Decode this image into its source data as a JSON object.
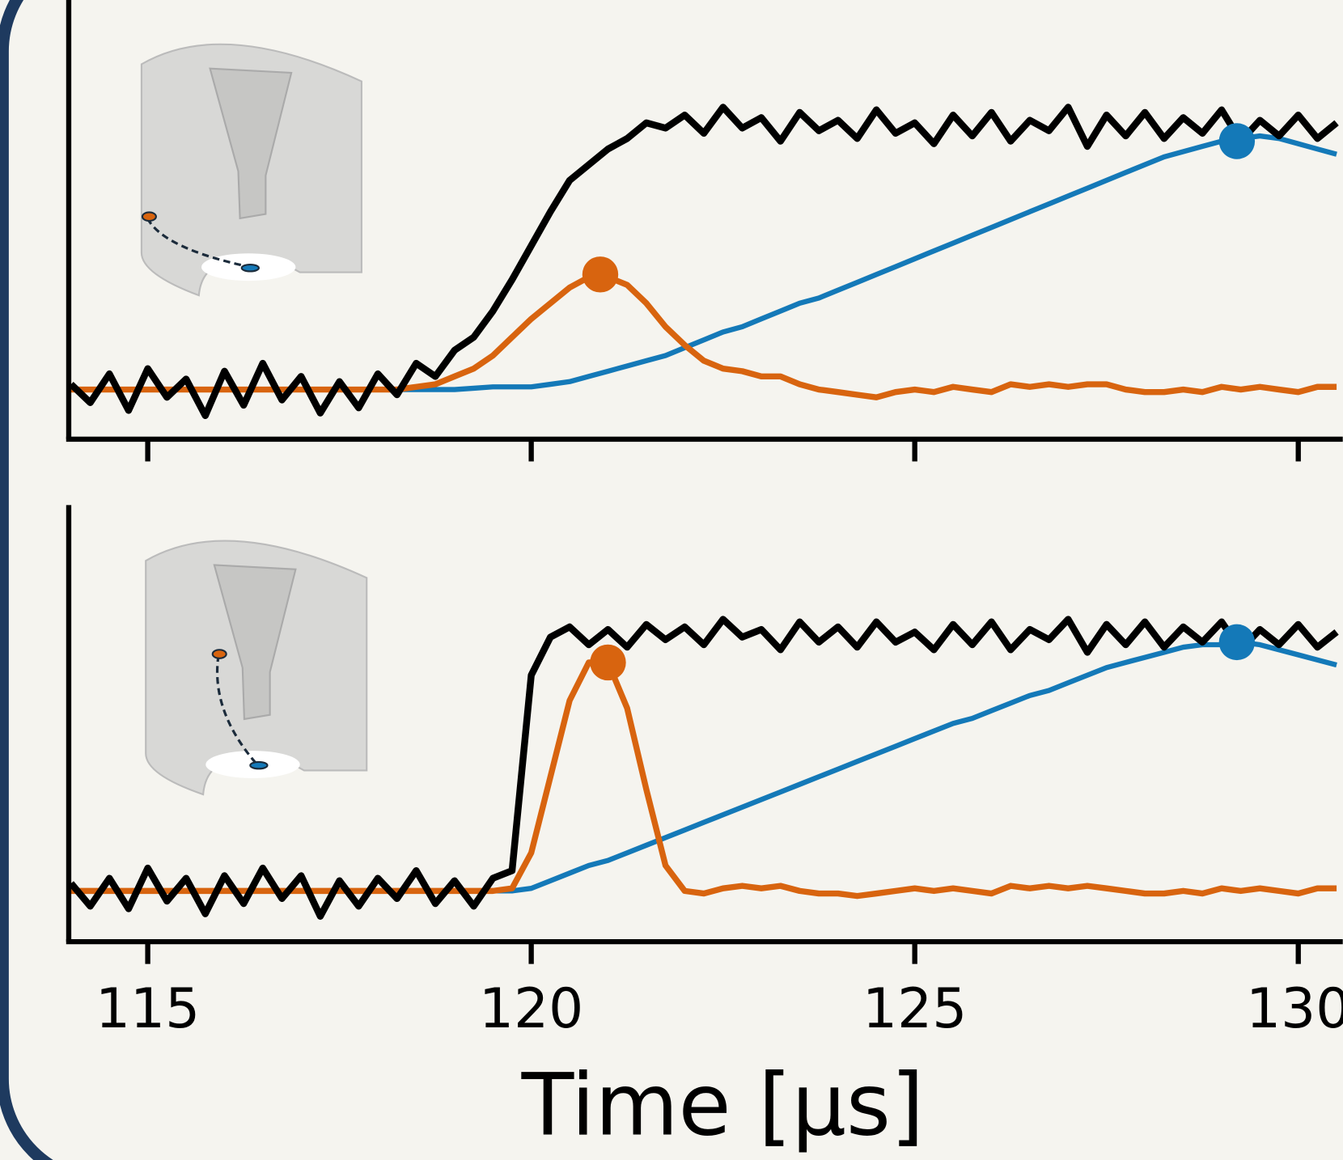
{
  "chart_data": [
    {
      "type": "line",
      "x": [
        114,
        114.25,
        114.5,
        114.75,
        115,
        115.25,
        115.5,
        115.75,
        116,
        116.25,
        116.5,
        116.75,
        117,
        117.25,
        117.5,
        117.75,
        118,
        118.25,
        118.5,
        118.75,
        119,
        119.25,
        119.5,
        119.75,
        120,
        120.25,
        120.5,
        120.75,
        121,
        121.25,
        121.5,
        121.75,
        122,
        122.25,
        122.5,
        122.75,
        123,
        123.25,
        123.5,
        123.75,
        124,
        124.25,
        124.5,
        124.75,
        125,
        125.25,
        125.5,
        125.75,
        126,
        126.25,
        126.5,
        126.75,
        127,
        127.25,
        127.5,
        127.75,
        128,
        128.25,
        128.5,
        128.75,
        129,
        129.25,
        129.5,
        129.75,
        130,
        130.25,
        130.5
      ],
      "series": [
        {
          "color": "#1479b8",
          "values": [
            0,
            0,
            0,
            0,
            0,
            0,
            0,
            0,
            0,
            0,
            0,
            0,
            0,
            0,
            0,
            0,
            0,
            0,
            0,
            0,
            0,
            0.005,
            0.01,
            0.01,
            0.01,
            0.02,
            0.03,
            0.05,
            0.07,
            0.09,
            0.11,
            0.13,
            0.16,
            0.19,
            0.22,
            0.24,
            0.27,
            0.3,
            0.33,
            0.35,
            0.38,
            0.41,
            0.44,
            0.47,
            0.5,
            0.53,
            0.56,
            0.59,
            0.62,
            0.65,
            0.68,
            0.71,
            0.74,
            0.77,
            0.8,
            0.83,
            0.86,
            0.89,
            0.91,
            0.93,
            0.95,
            0.96,
            0.97,
            0.96,
            0.94,
            0.92,
            0.9
          ]
        },
        {
          "color": "#d8640f",
          "values": [
            0,
            0,
            0,
            0,
            0,
            0,
            0,
            0,
            0,
            0,
            0,
            0,
            0,
            0,
            0,
            0,
            0,
            0,
            0.01,
            0.02,
            0.05,
            0.08,
            0.13,
            0.2,
            0.27,
            0.33,
            0.39,
            0.43,
            0.43,
            0.4,
            0.33,
            0.24,
            0.17,
            0.11,
            0.08,
            0.07,
            0.05,
            0.05,
            0.02,
            0,
            -0.01,
            -0.02,
            -0.03,
            -0.01,
            0,
            -0.01,
            0.01,
            0,
            -0.01,
            0.02,
            0.01,
            0.02,
            0.01,
            0.02,
            0.02,
            0,
            -0.01,
            -0.01,
            0,
            -0.01,
            0.01,
            0,
            0.01,
            0,
            -0.01,
            0.01,
            0.01
          ]
        },
        {
          "color": "#000000",
          "values": [
            0.02,
            -0.05,
            0.06,
            -0.08,
            0.08,
            -0.03,
            0.04,
            -0.1,
            0.07,
            -0.06,
            0.1,
            -0.04,
            0.05,
            -0.09,
            0.03,
            -0.07,
            0.06,
            -0.02,
            0.1,
            0.05,
            0.15,
            0.2,
            0.3,
            0.42,
            0.55,
            0.68,
            0.8,
            0.86,
            0.92,
            0.96,
            1.02,
            1.0,
            1.05,
            0.98,
            1.08,
            1.0,
            1.04,
            0.95,
            1.06,
            0.99,
            1.03,
            0.96,
            1.07,
            0.98,
            1.02,
            0.94,
            1.05,
            0.97,
            1.06,
            0.95,
            1.03,
            0.99,
            1.08,
            0.93,
            1.05,
            0.97,
            1.06,
            0.96,
            1.04,
            0.98,
            1.07,
            0.95,
            1.03,
            0.97,
            1.05,
            0.96,
            1.02
          ]
        }
      ],
      "points": [
        {
          "color": "#d8640f",
          "x": 120.9,
          "y": 0.44
        },
        {
          "color": "#1479b8",
          "x": 129.2,
          "y": 0.95
        }
      ],
      "xlim": [
        113.97,
        130.58
      ],
      "ylim": [
        -0.19,
        1.49
      ],
      "xticks": [
        115,
        120,
        125,
        130
      ]
    },
    {
      "type": "line",
      "x": [
        114,
        114.25,
        114.5,
        114.75,
        115,
        115.25,
        115.5,
        115.75,
        116,
        116.25,
        116.5,
        116.75,
        117,
        117.25,
        117.5,
        117.75,
        118,
        118.25,
        118.5,
        118.75,
        119,
        119.25,
        119.5,
        119.75,
        120,
        120.25,
        120.5,
        120.75,
        121,
        121.25,
        121.5,
        121.75,
        122,
        122.25,
        122.5,
        122.75,
        123,
        123.25,
        123.5,
        123.75,
        124,
        124.25,
        124.5,
        124.75,
        125,
        125.25,
        125.5,
        125.75,
        126,
        126.25,
        126.5,
        126.75,
        127,
        127.25,
        127.5,
        127.75,
        128,
        128.25,
        128.5,
        128.75,
        129,
        129.25,
        129.5,
        129.75,
        130,
        130.25,
        130.5
      ],
      "series": [
        {
          "color": "#1479b8",
          "values": [
            0,
            0,
            0,
            0,
            0,
            0,
            0,
            0,
            0,
            0,
            0,
            0,
            0,
            0,
            0,
            0,
            0,
            0,
            0,
            0,
            0,
            0,
            0,
            0,
            0.01,
            0.04,
            0.07,
            0.1,
            0.12,
            0.15,
            0.18,
            0.21,
            0.24,
            0.27,
            0.3,
            0.33,
            0.36,
            0.39,
            0.42,
            0.45,
            0.48,
            0.51,
            0.54,
            0.57,
            0.6,
            0.63,
            0.66,
            0.68,
            0.71,
            0.74,
            0.77,
            0.79,
            0.82,
            0.85,
            0.88,
            0.9,
            0.92,
            0.94,
            0.96,
            0.97,
            0.97,
            0.98,
            0.97,
            0.95,
            0.93,
            0.91,
            0.89
          ]
        },
        {
          "color": "#d8640f",
          "values": [
            0,
            0,
            0,
            0,
            0,
            0,
            0,
            0,
            0,
            0,
            0,
            0,
            0,
            0,
            0,
            0,
            0,
            0,
            0,
            0,
            0,
            0,
            0,
            0.01,
            0.15,
            0.45,
            0.75,
            0.9,
            0.9,
            0.72,
            0.4,
            0.1,
            0,
            -0.01,
            0.01,
            0.02,
            0.01,
            0.02,
            0,
            -0.01,
            -0.01,
            -0.02,
            -0.01,
            0,
            0.01,
            0,
            0.01,
            0,
            -0.01,
            0.02,
            0.01,
            0.02,
            0.01,
            0.02,
            0.01,
            0,
            -0.01,
            -0.01,
            0,
            -0.01,
            0.01,
            0,
            0.01,
            0,
            -0.01,
            0.01,
            0.01
          ]
        },
        {
          "color": "#000000",
          "values": [
            0.03,
            -0.06,
            0.05,
            -0.07,
            0.09,
            -0.04,
            0.05,
            -0.09,
            0.06,
            -0.05,
            0.09,
            -0.03,
            0.06,
            -0.1,
            0.04,
            -0.06,
            0.05,
            -0.03,
            0.08,
            -0.05,
            0.04,
            -0.06,
            0.05,
            0.08,
            0.85,
            1.0,
            1.04,
            0.97,
            1.03,
            0.96,
            1.05,
            0.99,
            1.04,
            0.97,
            1.07,
            1.0,
            1.03,
            0.95,
            1.06,
            0.98,
            1.04,
            0.96,
            1.06,
            0.98,
            1.02,
            0.95,
            1.05,
            0.97,
            1.06,
            0.95,
            1.03,
            0.99,
            1.07,
            0.94,
            1.05,
            0.97,
            1.06,
            0.96,
            1.04,
            0.98,
            1.06,
            0.95,
            1.03,
            0.97,
            1.05,
            0.96,
            1.02
          ]
        }
      ],
      "points": [
        {
          "color": "#d8640f",
          "x": 121.0,
          "y": 0.9
        },
        {
          "color": "#1479b8",
          "x": 129.2,
          "y": 0.98
        }
      ],
      "xlim": [
        113.97,
        130.58
      ],
      "ylim": [
        -0.2,
        1.52
      ],
      "xticks": [
        115,
        120,
        125,
        130
      ],
      "xlabel": "Time [µs]"
    }
  ]
}
